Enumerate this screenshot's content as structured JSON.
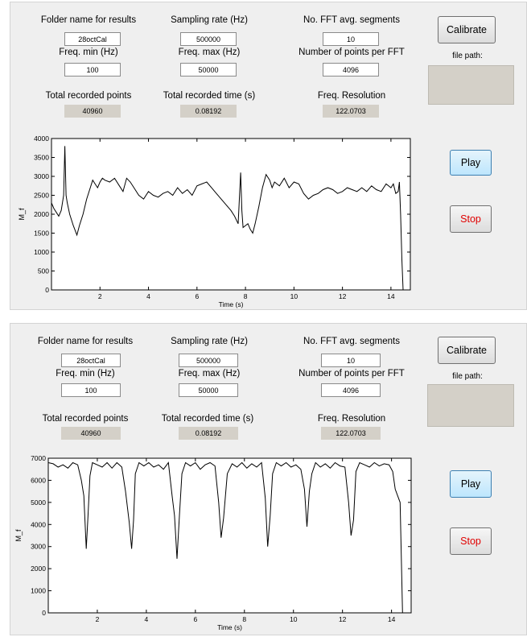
{
  "panels": [
    {
      "folder_label": "Folder name for results",
      "folder_value": "28octCal",
      "rate_label": "Sampling rate (Hz)",
      "rate_value": "500000",
      "segments_label": "No. FFT avg. segments",
      "segments_value": "10",
      "fmin_label": "Freq. min (Hz)",
      "fmin_value": "100",
      "fmax_label": "Freq. max (Hz)",
      "fmax_value": "50000",
      "points_fft_label": "Number of points per FFT",
      "points_fft_value": "4096",
      "total_points_label": "Total recorded points",
      "total_points_value": "40960",
      "total_time_label": "Total recorded time (s)",
      "total_time_value": "0.08192",
      "resolution_label": "Freq. Resolution",
      "resolution_value": "122.0703",
      "calibrate_label": "Calibrate",
      "file_path_label": "file path:",
      "play_label": "Play",
      "stop_label": "Stop"
    },
    {
      "folder_label": "Folder name for results",
      "folder_value": "28octCal",
      "rate_label": "Sampling rate (Hz)",
      "rate_value": "500000",
      "segments_label": "No. FFT avg. segments",
      "segments_value": "10",
      "fmin_label": "Freq. min (Hz)",
      "fmin_value": "100",
      "fmax_label": "Freq. max (Hz)",
      "fmax_value": "50000",
      "points_fft_label": "Number of points per FFT",
      "points_fft_value": "4096",
      "total_points_label": "Total recorded points",
      "total_points_value": "40960",
      "total_time_label": "Total recorded time (s)",
      "total_time_value": "0.08192",
      "resolution_label": "Freq. Resolution",
      "resolution_value": "122.0703",
      "calibrate_label": "Calibrate",
      "file_path_label": "file path:",
      "play_label": "Play",
      "stop_label": "Stop"
    }
  ],
  "chart_data": [
    {
      "type": "line",
      "xlabel": "Time (s)",
      "ylabel": "M_f",
      "xlim": [
        0,
        14.8
      ],
      "ylim": [
        0,
        4000
      ],
      "xticks": [
        2,
        4,
        6,
        8,
        10,
        12,
        14
      ],
      "yticks": [
        0,
        500,
        1000,
        1500,
        2000,
        2500,
        3000,
        3500,
        4000
      ],
      "grid": false,
      "x": [
        0,
        0.1,
        0.2,
        0.3,
        0.4,
        0.5,
        0.55,
        0.6,
        0.65,
        0.75,
        0.9,
        1.05,
        1.15,
        1.3,
        1.45,
        1.6,
        1.7,
        1.8,
        1.9,
        2.0,
        2.1,
        2.2,
        2.4,
        2.6,
        2.8,
        2.95,
        3.1,
        3.25,
        3.4,
        3.6,
        3.8,
        4.0,
        4.2,
        4.4,
        4.6,
        4.8,
        5.0,
        5.2,
        5.4,
        5.6,
        5.8,
        6.0,
        6.2,
        6.4,
        6.6,
        6.8,
        7.0,
        7.2,
        7.4,
        7.55,
        7.7,
        7.8,
        7.85,
        7.9,
        8.0,
        8.1,
        8.2,
        8.3,
        8.4,
        8.55,
        8.7,
        8.85,
        9.0,
        9.1,
        9.2,
        9.4,
        9.6,
        9.8,
        10.0,
        10.2,
        10.4,
        10.6,
        10.8,
        11.0,
        11.2,
        11.4,
        11.6,
        11.8,
        12.0,
        12.2,
        12.4,
        12.6,
        12.8,
        13.0,
        13.2,
        13.4,
        13.6,
        13.8,
        14.0,
        14.1,
        14.2,
        14.3,
        14.35,
        14.4,
        14.45,
        14.5
      ],
      "y": [
        2300,
        2150,
        2050,
        1950,
        2100,
        2500,
        3800,
        2500,
        2300,
        2000,
        1700,
        1450,
        1700,
        2000,
        2400,
        2700,
        2900,
        2800,
        2700,
        2850,
        2950,
        2900,
        2850,
        2950,
        2750,
        2600,
        2950,
        2850,
        2700,
        2500,
        2400,
        2600,
        2500,
        2450,
        2550,
        2600,
        2500,
        2700,
        2550,
        2650,
        2500,
        2750,
        2800,
        2850,
        2700,
        2550,
        2400,
        2250,
        2100,
        1950,
        1750,
        3100,
        2100,
        1650,
        1700,
        1750,
        1600,
        1500,
        1750,
        2200,
        2700,
        3050,
        2900,
        2700,
        2850,
        2750,
        2950,
        2700,
        2850,
        2800,
        2550,
        2400,
        2500,
        2550,
        2650,
        2700,
        2650,
        2550,
        2600,
        2700,
        2650,
        2600,
        2700,
        2600,
        2750,
        2650,
        2600,
        2800,
        2700,
        2800,
        2550,
        2600,
        2850,
        2000,
        800,
        0
      ]
    },
    {
      "type": "line",
      "xlabel": "Time (s)",
      "ylabel": "M_f",
      "xlim": [
        0,
        14.8
      ],
      "ylim": [
        0,
        7000
      ],
      "xticks": [
        2,
        4,
        6,
        8,
        10,
        12,
        14
      ],
      "yticks": [
        0,
        1000,
        2000,
        3000,
        4000,
        5000,
        6000,
        7000
      ],
      "grid": false,
      "x": [
        0,
        0.2,
        0.4,
        0.6,
        0.8,
        1.0,
        1.2,
        1.35,
        1.45,
        1.55,
        1.62,
        1.7,
        1.8,
        2.0,
        2.2,
        2.4,
        2.6,
        2.8,
        3.0,
        3.15,
        3.3,
        3.4,
        3.48,
        3.55,
        3.7,
        3.9,
        4.1,
        4.3,
        4.5,
        4.7,
        4.9,
        5.05,
        5.15,
        5.25,
        5.35,
        5.45,
        5.6,
        5.8,
        6.0,
        6.2,
        6.4,
        6.6,
        6.8,
        6.95,
        7.05,
        7.15,
        7.3,
        7.5,
        7.7,
        7.9,
        8.1,
        8.3,
        8.5,
        8.7,
        8.85,
        8.95,
        9.05,
        9.15,
        9.3,
        9.5,
        9.7,
        9.9,
        10.1,
        10.3,
        10.45,
        10.55,
        10.65,
        10.75,
        10.9,
        11.1,
        11.3,
        11.5,
        11.7,
        11.9,
        12.1,
        12.25,
        12.35,
        12.45,
        12.55,
        12.7,
        12.9,
        13.1,
        13.3,
        13.5,
        13.7,
        13.9,
        14.05,
        14.15,
        14.25,
        14.35,
        14.45
      ],
      "y": [
        6800,
        6750,
        6600,
        6700,
        6550,
        6800,
        6700,
        6000,
        5300,
        2900,
        4400,
        6200,
        6800,
        6700,
        6600,
        6800,
        6550,
        6800,
        6600,
        5500,
        4100,
        2900,
        4200,
        6300,
        6800,
        6650,
        6800,
        6600,
        6700,
        6500,
        6800,
        5300,
        4400,
        2450,
        4400,
        6300,
        6800,
        6650,
        6800,
        6500,
        6700,
        6800,
        6650,
        5000,
        3400,
        4300,
        6300,
        6750,
        6600,
        6800,
        6550,
        6750,
        6600,
        6800,
        5200,
        3000,
        4400,
        6300,
        6800,
        6650,
        6800,
        6600,
        6700,
        6500,
        5600,
        3900,
        5500,
        6300,
        6800,
        6600,
        6750,
        6550,
        6800,
        6650,
        6600,
        5000,
        3500,
        4200,
        6400,
        6800,
        6700,
        6600,
        6800,
        6650,
        6750,
        6700,
        6400,
        5600,
        5300,
        5000,
        0
      ]
    }
  ]
}
